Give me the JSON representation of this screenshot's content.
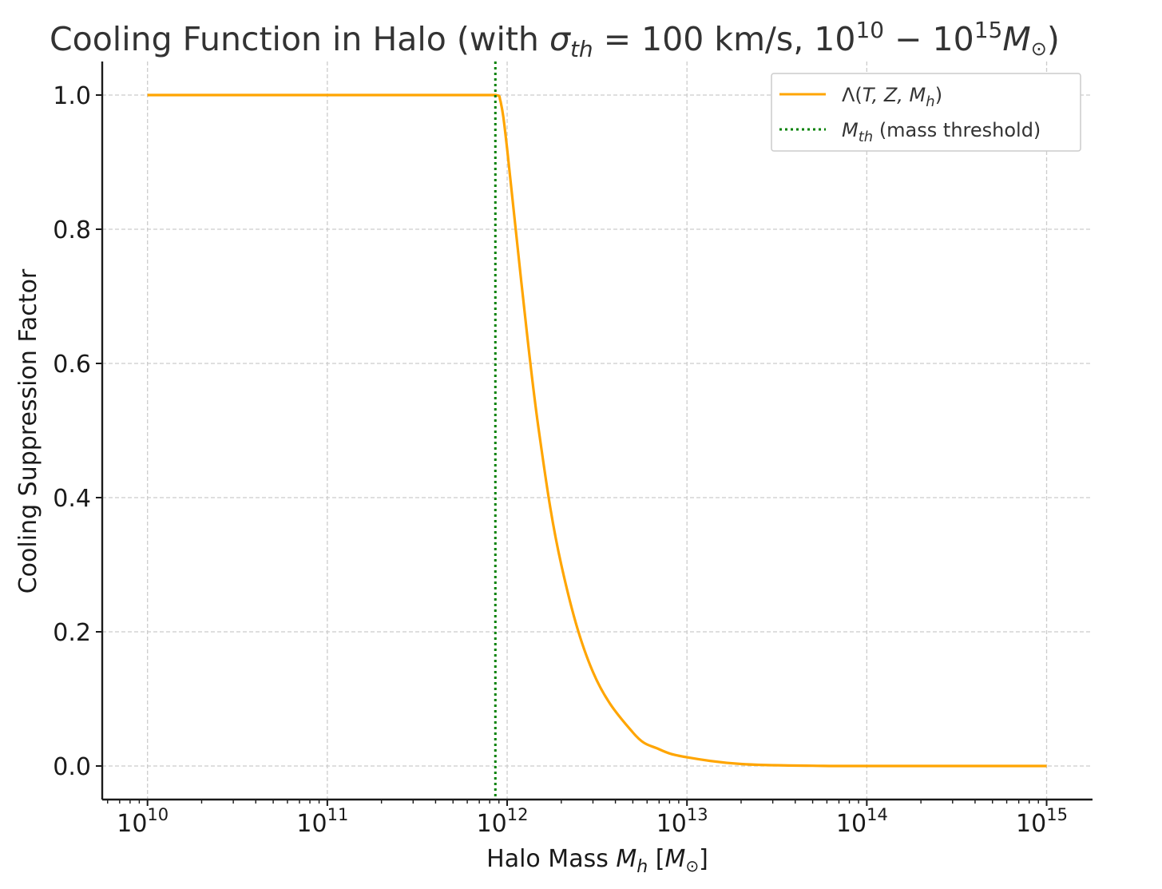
{
  "chart_data": {
    "type": "line",
    "title": {
      "prefix": "Cooling Function in Halo (with ",
      "sigma": "σ",
      "sigma_sub": "th",
      "middle": " = 100 km/s, 10",
      "exp_low": "10",
      "dash": " − 10",
      "exp_high": "15",
      "mass": "M",
      "sun": "⊙",
      "suffix": ")"
    },
    "xlabel": {
      "prefix": "Halo Mass ",
      "symbol": "M",
      "sub": "h",
      "unit_open": " [",
      "unit": "M",
      "unit_sub": "⊙",
      "unit_close": "]"
    },
    "ylabel": "Cooling Suppression Factor",
    "xscale": "log",
    "xlim": [
      5600000000.0,
      1800000000000000.0
    ],
    "ylim": [
      -0.05,
      1.05
    ],
    "x_ticks": [
      {
        "value": 10000000000.0,
        "base": "10",
        "exp": "10"
      },
      {
        "value": 100000000000.0,
        "base": "10",
        "exp": "11"
      },
      {
        "value": 1000000000000.0,
        "base": "10",
        "exp": "12"
      },
      {
        "value": 10000000000000.0,
        "base": "10",
        "exp": "13"
      },
      {
        "value": 100000000000000.0,
        "base": "10",
        "exp": "14"
      },
      {
        "value": 1000000000000000.0,
        "base": "10",
        "exp": "15"
      }
    ],
    "y_ticks": [
      {
        "value": 0.0,
        "label": "0.0"
      },
      {
        "value": 0.2,
        "label": "0.2"
      },
      {
        "value": 0.4,
        "label": "0.4"
      },
      {
        "value": 0.6,
        "label": "0.6"
      },
      {
        "value": 0.8,
        "label": "0.8"
      },
      {
        "value": 1.0,
        "label": "1.0"
      }
    ],
    "grid": true,
    "legend_position": "top-right",
    "series": [
      {
        "name": "Λ(T, Z, M_h)",
        "color": "#FFA500",
        "x": [
          10000000000.0,
          30000000000.0,
          100000000000.0,
          300000000000.0,
          600000000000.0,
          860000000000.0,
          920000000000.0,
          1000000000000.0,
          1200000000000.0,
          1500000000000.0,
          2000000000000.0,
          3000000000000.0,
          5000000000000.0,
          7000000000000.0,
          10000000000000.0,
          20000000000000.0,
          50000000000000.0,
          100000000000000.0,
          1000000000000000.0
        ],
        "y": [
          1.0,
          1.0,
          1.0,
          1.0,
          1.0,
          1.0,
          0.99,
          0.92,
          0.72,
          0.5,
          0.3,
          0.14,
          0.05,
          0.025,
          0.013,
          0.003,
          0.0003,
          0.0,
          0.0
        ]
      },
      {
        "name": "M_th (mass threshold)",
        "color": "#008000",
        "style": "dotted",
        "vline_x": 860000000000.0
      }
    ],
    "legend": [
      {
        "text_main": "Λ(",
        "text_math": "T, Z, M",
        "text_sub": "h",
        "text_end": ")"
      },
      {
        "text_main": "M",
        "text_sub": "th",
        "text_end": " (mass threshold)"
      }
    ]
  }
}
